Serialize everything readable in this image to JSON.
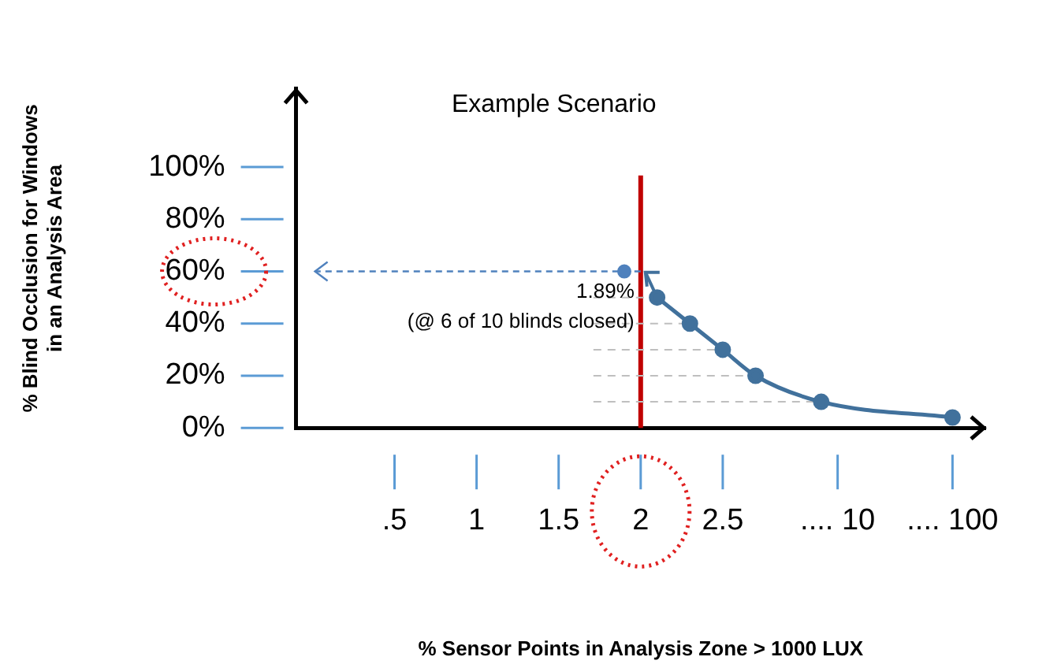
{
  "chart_data": {
    "type": "line",
    "title": "Example Scenario",
    "xlabel": "% Sensor Points in Analysis Zone > 1000 LUX",
    "ylabel": "% Blind Occlusion for Windows\nin an Analysis Area",
    "categories": [
      null,
      null,
      null,
      null,
      null,
      null,
      ".5",
      null,
      null,
      null,
      null,
      "1",
      null,
      null,
      null,
      null,
      "1.5",
      null,
      null,
      null,
      null,
      "2",
      null,
      null,
      null,
      null,
      "2.5",
      null,
      null,
      null,
      null,
      null,
      null,
      ".... 10",
      null,
      null,
      null,
      null,
      null,
      null,
      ".... 100",
      null,
      null
    ],
    "series": [
      {
        "type": "scatter",
        "color": "#4f81bd",
        "values": [
          null,
          null,
          null,
          null,
          null,
          null,
          null,
          null,
          null,
          null,
          null,
          null,
          null,
          null,
          null,
          null,
          null,
          null,
          null,
          null,
          60,
          null,
          null,
          null,
          null,
          null,
          null,
          null,
          null,
          null,
          null,
          null,
          null,
          null,
          null,
          null,
          null,
          null,
          null,
          null,
          null,
          null,
          null
        ]
      },
      {
        "color": "#41719c",
        "values": [
          null,
          null,
          null,
          null,
          null,
          null,
          null,
          null,
          null,
          null,
          null,
          null,
          null,
          null,
          null,
          null,
          null,
          null,
          null,
          null,
          null,
          null,
          50,
          null,
          40,
          null,
          30,
          null,
          20,
          null,
          null,
          null,
          10,
          null,
          null,
          null,
          null,
          null,
          null,
          null,
          4,
          null,
          null
        ]
      }
    ],
    "ylim": [
      0,
      130
    ],
    "yticks": [
      {
        "value": 0,
        "label": "0%"
      },
      {
        "value": 20,
        "label": "20%"
      },
      {
        "value": 40,
        "label": "40%"
      },
      {
        "value": 60,
        "label": "60%"
      },
      {
        "value": 80,
        "label": "80%"
      },
      {
        "value": 100,
        "label": "100%"
      }
    ],
    "ref_lines": [
      {
        "axis": "x",
        "value": "2",
        "color": "#c00000"
      },
      {
        "axis": "y",
        "value": 50,
        "color": "#bfbfbf",
        "line_style": "dashed"
      },
      {
        "axis": "y",
        "value": 40,
        "color": "#bfbfbf",
        "line_style": "dashed"
      },
      {
        "axis": "y",
        "value": 30,
        "color": "#bfbfbf",
        "line_style": "dashed"
      },
      {
        "axis": "y",
        "value": 20,
        "color": "#bfbfbf",
        "line_style": "dashed"
      },
      {
        "axis": "y",
        "value": 10,
        "color": "#bfbfbf",
        "line_style": "dashed"
      }
    ],
    "annotations": [
      "1.89%",
      "(@ 6 of 10 blinds closed)"
    ],
    "marker": "circle",
    "grid": false,
    "legend": false
  }
}
